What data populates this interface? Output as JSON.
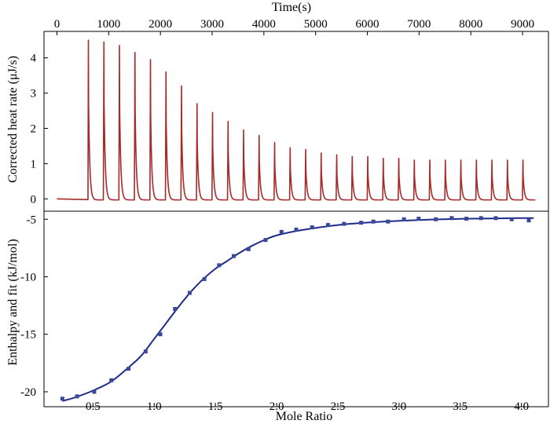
{
  "chart_data": [
    {
      "type": "line",
      "title": "",
      "xlabel": "Time(s)",
      "ylabel": "Corrected heat rate (μJ/s)",
      "xlim": [
        -250,
        9500
      ],
      "ylim": [
        -0.35,
        4.75
      ],
      "xticks": [
        "0",
        "1000",
        "2000",
        "3000",
        "4000",
        "5000",
        "6000",
        "7000",
        "8000",
        "9000"
      ],
      "yticks": [
        "0",
        "1",
        "2",
        "3",
        "4"
      ],
      "grid": false,
      "colors": {
        "trace": "#a52a2a"
      },
      "baseline_segment": {
        "x": [
          0,
          600
        ],
        "y": [
          0,
          -0.02
        ]
      },
      "series": [
        {
          "injection_times": [
            600,
            900,
            1200,
            1500,
            1800,
            2100,
            2400,
            2700,
            3000,
            3300,
            3600,
            3900,
            4200,
            4500,
            4800,
            5100,
            5400,
            5700,
            6000,
            6300,
            6600,
            6900,
            7200,
            7500,
            7800,
            8100,
            8400,
            8700,
            9000
          ],
          "peak_heights": [
            4.5,
            4.45,
            4.35,
            4.15,
            3.95,
            3.6,
            3.2,
            2.7,
            2.45,
            2.2,
            1.95,
            1.8,
            1.6,
            1.45,
            1.4,
            1.3,
            1.25,
            1.2,
            1.2,
            1.15,
            1.15,
            1.1,
            1.1,
            1.1,
            1.1,
            1.1,
            1.1,
            1.1,
            1.1
          ],
          "end_time": 9250
        }
      ]
    },
    {
      "type": "scatter",
      "title": "",
      "xlabel": "Mole Ratio",
      "ylabel": "Enthalpy and fit (kJ/mol)",
      "xlim": [
        0.1,
        4.22
      ],
      "ylim": [
        -21.3,
        -4.3
      ],
      "xticks": [
        "0.5",
        "1.0",
        "1.5",
        "2.0",
        "2.5",
        "3.0",
        "3.5",
        "4.0"
      ],
      "yticks": [
        "-5",
        "-10",
        "-15",
        "-20"
      ],
      "grid": false,
      "colors": {
        "points": "#3a4a9a",
        "fit": "#1f2b8a"
      },
      "points": {
        "x": [
          0.25,
          0.37,
          0.51,
          0.65,
          0.79,
          0.93,
          1.05,
          1.17,
          1.29,
          1.41,
          1.53,
          1.65,
          1.77,
          1.91,
          2.04,
          2.16,
          2.29,
          2.42,
          2.55,
          2.69,
          2.79,
          2.91,
          3.04,
          3.16,
          3.3,
          3.43,
          3.55,
          3.67,
          3.79,
          3.92,
          4.06
        ],
        "y": [
          -20.6,
          -20.4,
          -20.0,
          -19.0,
          -18.0,
          -16.5,
          -15.0,
          -12.8,
          -11.4,
          -10.2,
          -9.0,
          -8.2,
          -7.6,
          -6.8,
          -6.1,
          -5.9,
          -5.7,
          -5.5,
          -5.4,
          -5.3,
          -5.2,
          -5.2,
          -5.0,
          -4.95,
          -5.0,
          -4.9,
          -4.95,
          -4.9,
          -4.9,
          -5.0,
          -5.1
        ]
      },
      "fit": {
        "x": [
          0.25,
          0.35,
          0.5,
          0.65,
          0.8,
          0.9,
          1.0,
          1.1,
          1.2,
          1.3,
          1.4,
          1.5,
          1.6,
          1.7,
          1.8,
          1.9,
          2.0,
          2.2,
          2.5,
          2.8,
          3.2,
          3.6,
          4.0,
          4.1
        ],
        "y": [
          -20.8,
          -20.5,
          -19.9,
          -19.1,
          -17.8,
          -16.8,
          -15.4,
          -14.0,
          -12.6,
          -11.3,
          -10.2,
          -9.3,
          -8.6,
          -7.9,
          -7.3,
          -6.8,
          -6.4,
          -5.95,
          -5.5,
          -5.25,
          -5.05,
          -4.95,
          -4.9,
          -4.9
        ]
      }
    }
  ]
}
